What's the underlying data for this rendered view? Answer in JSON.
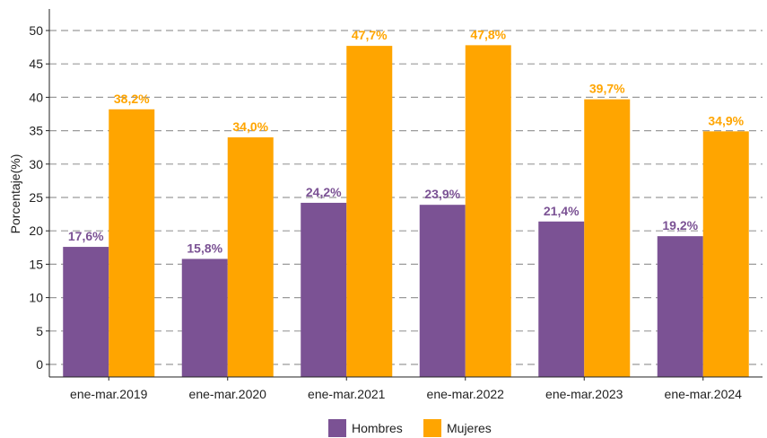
{
  "chart_data": {
    "type": "bar",
    "ylabel": "Porcentaje(%)",
    "xlabel": "",
    "ylim": [
      0,
      50
    ],
    "yticks": [
      0,
      5,
      10,
      15,
      20,
      25,
      30,
      35,
      40,
      45,
      50
    ],
    "grid": "horizontal dashed",
    "legend_position": "bottom",
    "categories": [
      "ene-mar.2019",
      "ene-mar.2020",
      "ene-mar.2021",
      "ene-mar.2022",
      "ene-mar.2023",
      "ene-mar.2024"
    ],
    "series": [
      {
        "name": "Hombres",
        "color": "#7B5294",
        "values": [
          17.6,
          15.8,
          24.2,
          23.9,
          21.4,
          19.2
        ],
        "labels": [
          "17,6%",
          "15,8%",
          "24,2%",
          "23,9%",
          "21,4%",
          "19,2%"
        ]
      },
      {
        "name": "Mujeres",
        "color": "#FFA500",
        "values": [
          38.2,
          34.0,
          47.7,
          47.8,
          39.7,
          34.9
        ],
        "labels": [
          "38,2%",
          "34,0%",
          "47,7%",
          "47,8%",
          "39,7%",
          "34,9%"
        ]
      }
    ]
  }
}
